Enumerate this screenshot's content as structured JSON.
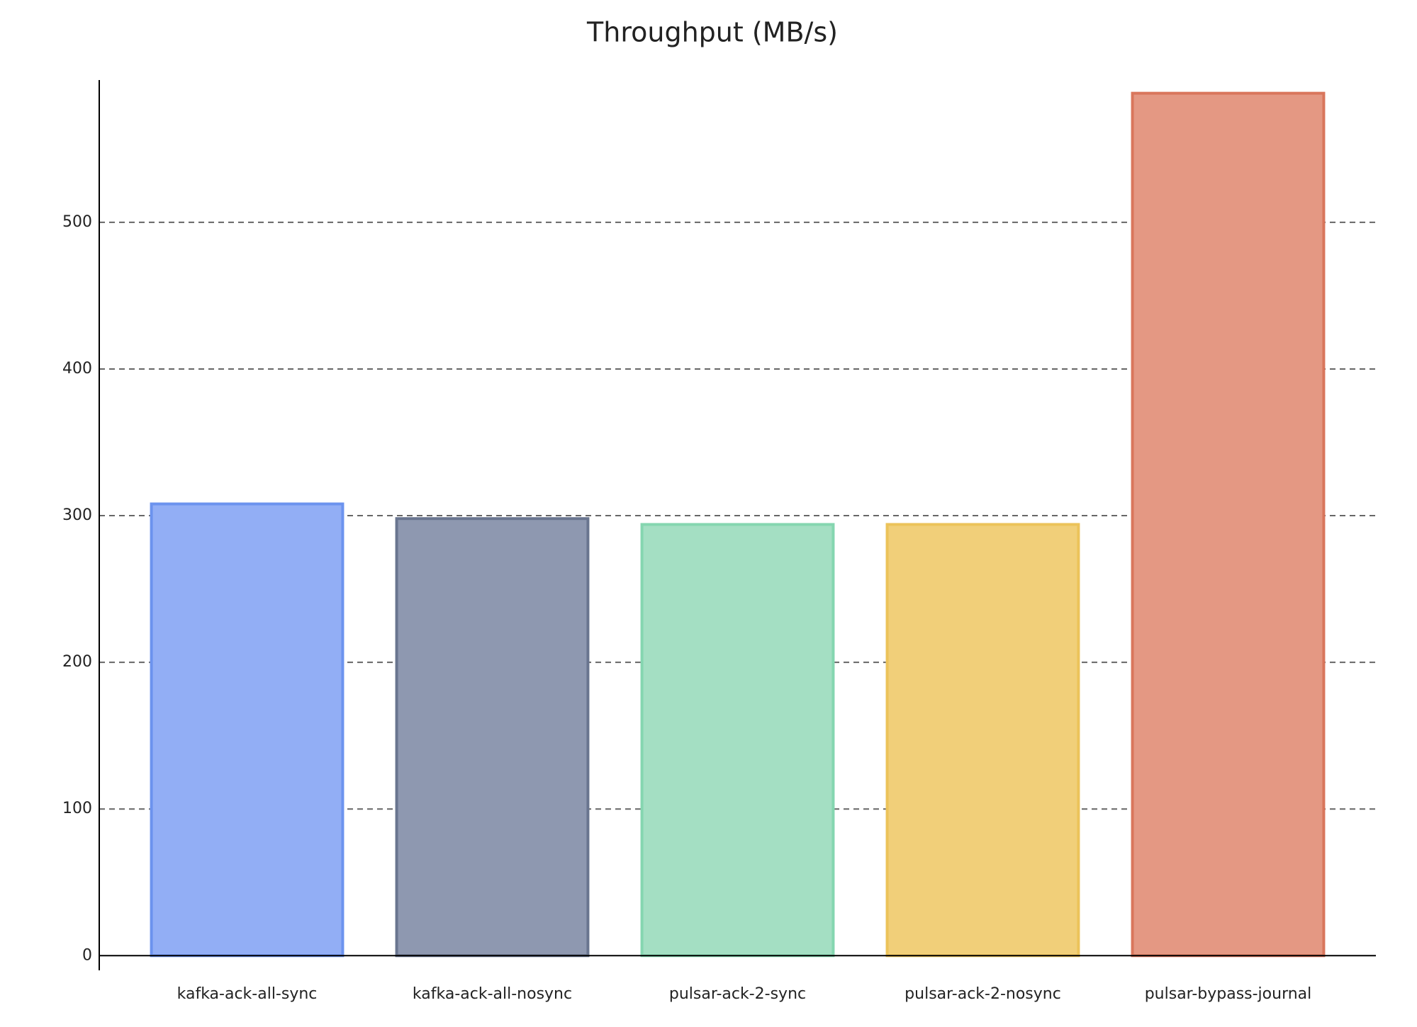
{
  "chart_data": {
    "type": "bar",
    "title": "Throughput (MB/s)",
    "categories": [
      "kafka-ack-all-sync",
      "kafka-ack-all-nosync",
      "pulsar-ack-2-sync",
      "pulsar-ack-2-nosync",
      "pulsar-bypass-journal"
    ],
    "values": [
      308,
      298,
      294,
      294,
      588
    ],
    "colors": [
      "#92aef5",
      "#8e98b0",
      "#a4dfc3",
      "#f1cf79",
      "#e49883"
    ],
    "edge_colors": [
      "#6c93ee",
      "#69758f",
      "#85d6b0",
      "#ecc35a",
      "#d9765c"
    ],
    "ylim": [
      -10,
      597
    ],
    "yticks": [
      0,
      100,
      200,
      300,
      400,
      500
    ],
    "grid": true
  }
}
